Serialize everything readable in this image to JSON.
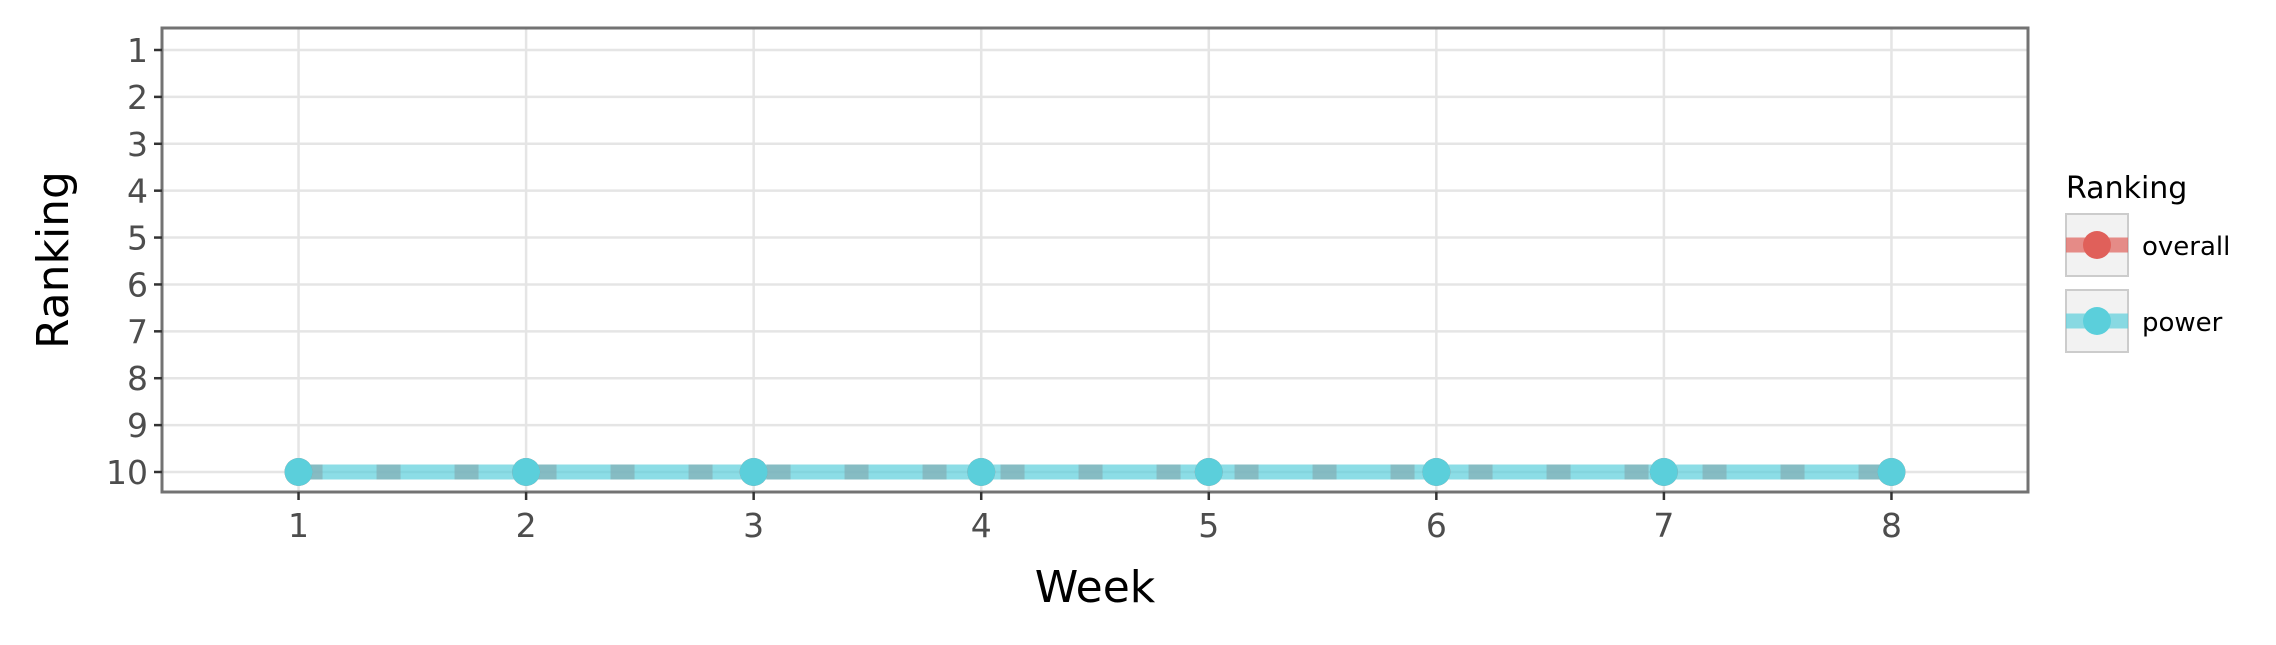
{
  "chart_data": {
    "type": "line",
    "title": "",
    "xlabel": "Week",
    "ylabel": "Ranking",
    "x": [
      1,
      2,
      3,
      4,
      5,
      6,
      7,
      8
    ],
    "x_ticks": [
      "1",
      "2",
      "3",
      "4",
      "5",
      "6",
      "7",
      "8"
    ],
    "y_ticks": [
      "1",
      "2",
      "3",
      "4",
      "5",
      "6",
      "7",
      "8",
      "9",
      "10"
    ],
    "xlim": [
      0.4,
      8.6
    ],
    "ylim": [
      1,
      10
    ],
    "y_reversed": true,
    "grid": true,
    "legend": {
      "title": "Ranking",
      "placement": "right",
      "entries": [
        "overall",
        "power"
      ]
    },
    "series": [
      {
        "name": "overall",
        "values": [
          10,
          10,
          10,
          10,
          10,
          10,
          10,
          10
        ],
        "color": "#e0605a",
        "line_style": "dashed"
      },
      {
        "name": "power",
        "values": [
          10,
          10,
          10,
          10,
          10,
          10,
          10,
          10
        ],
        "color": "#5bcfdb",
        "line_style": "solid"
      }
    ],
    "colors": {
      "panel_border": "#737373",
      "grid": "#e5e5e5",
      "legend_key_bg": "#f2f2f2",
      "legend_key_border": "#cccccc"
    }
  }
}
